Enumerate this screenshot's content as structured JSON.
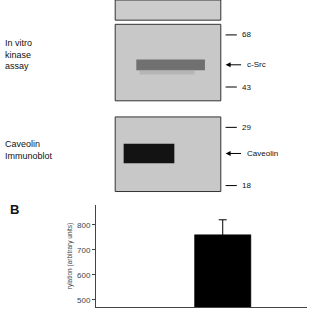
{
  "chart_data": {
    "type": "bar",
    "categories": [
      null
    ],
    "values": [
      760
    ],
    "errors": [
      60
    ],
    "color": "#000000",
    "ylim": [
      470,
      880
    ],
    "yticks": [
      500,
      600,
      700,
      800
    ],
    "ylabel": "rylation (arbitrary units)",
    "grid": false,
    "tick_labels": "y",
    "annotations": [
      "B",
      "In vitro\nkinase\nassay",
      "Caveolin\nImmunoblot",
      "68",
      "c-Src",
      "43",
      "29",
      "Caveolin",
      "18"
    ]
  }
}
